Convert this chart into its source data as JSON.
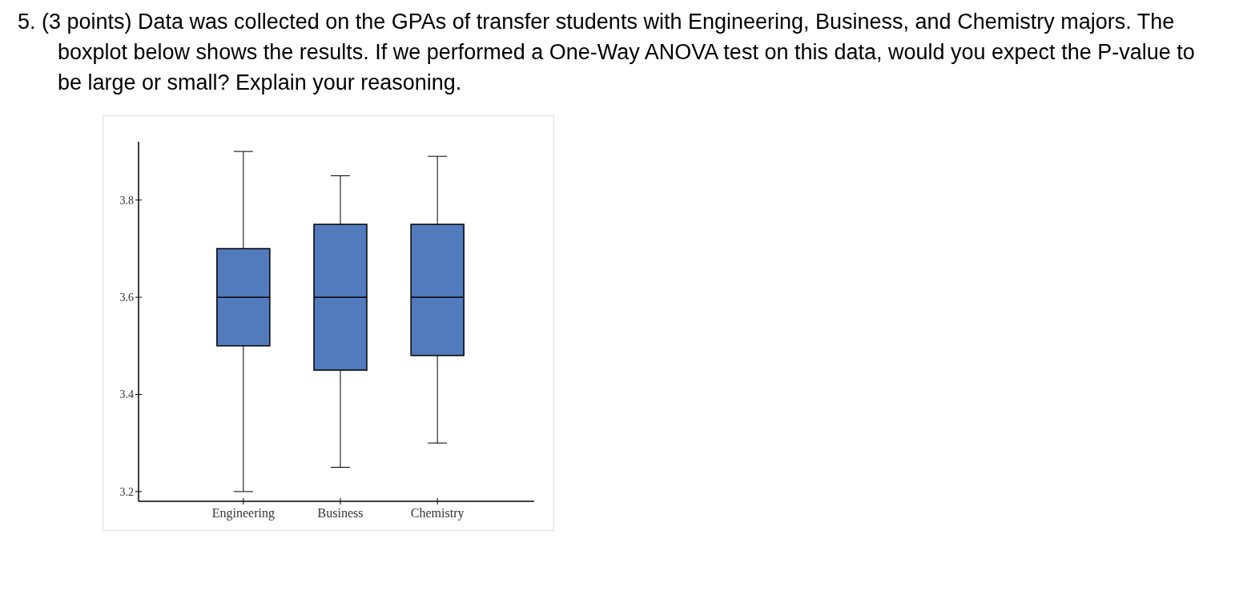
{
  "chart_data": {
    "type": "box",
    "title": "5. (3 points) Data was collected on the GPAs of transfer students with Engineering, Business, and Chemistry majors. The boxplot below shows the results. If we performed a One-Way ANOVA test on this data, would you expect the P-value to be large or small? Explain your reasoning.",
    "categories": [
      "Engineering",
      "Business",
      "Chemistry"
    ],
    "color": "#517bbd",
    "boxes": [
      {
        "low": 3.2,
        "q1": 3.5,
        "median": 3.6,
        "q3": 3.7,
        "high": 3.9
      },
      {
        "low": 3.25,
        "q1": 3.45,
        "median": 3.6,
        "q3": 3.75,
        "high": 3.85
      },
      {
        "low": 3.3,
        "q1": 3.48,
        "median": 3.6,
        "q3": 3.75,
        "high": 3.89
      }
    ],
    "ylim": [
      3.18,
      3.92
    ],
    "yticks": [
      3.2,
      3.4,
      3.6,
      3.8
    ],
    "grid": false
  }
}
